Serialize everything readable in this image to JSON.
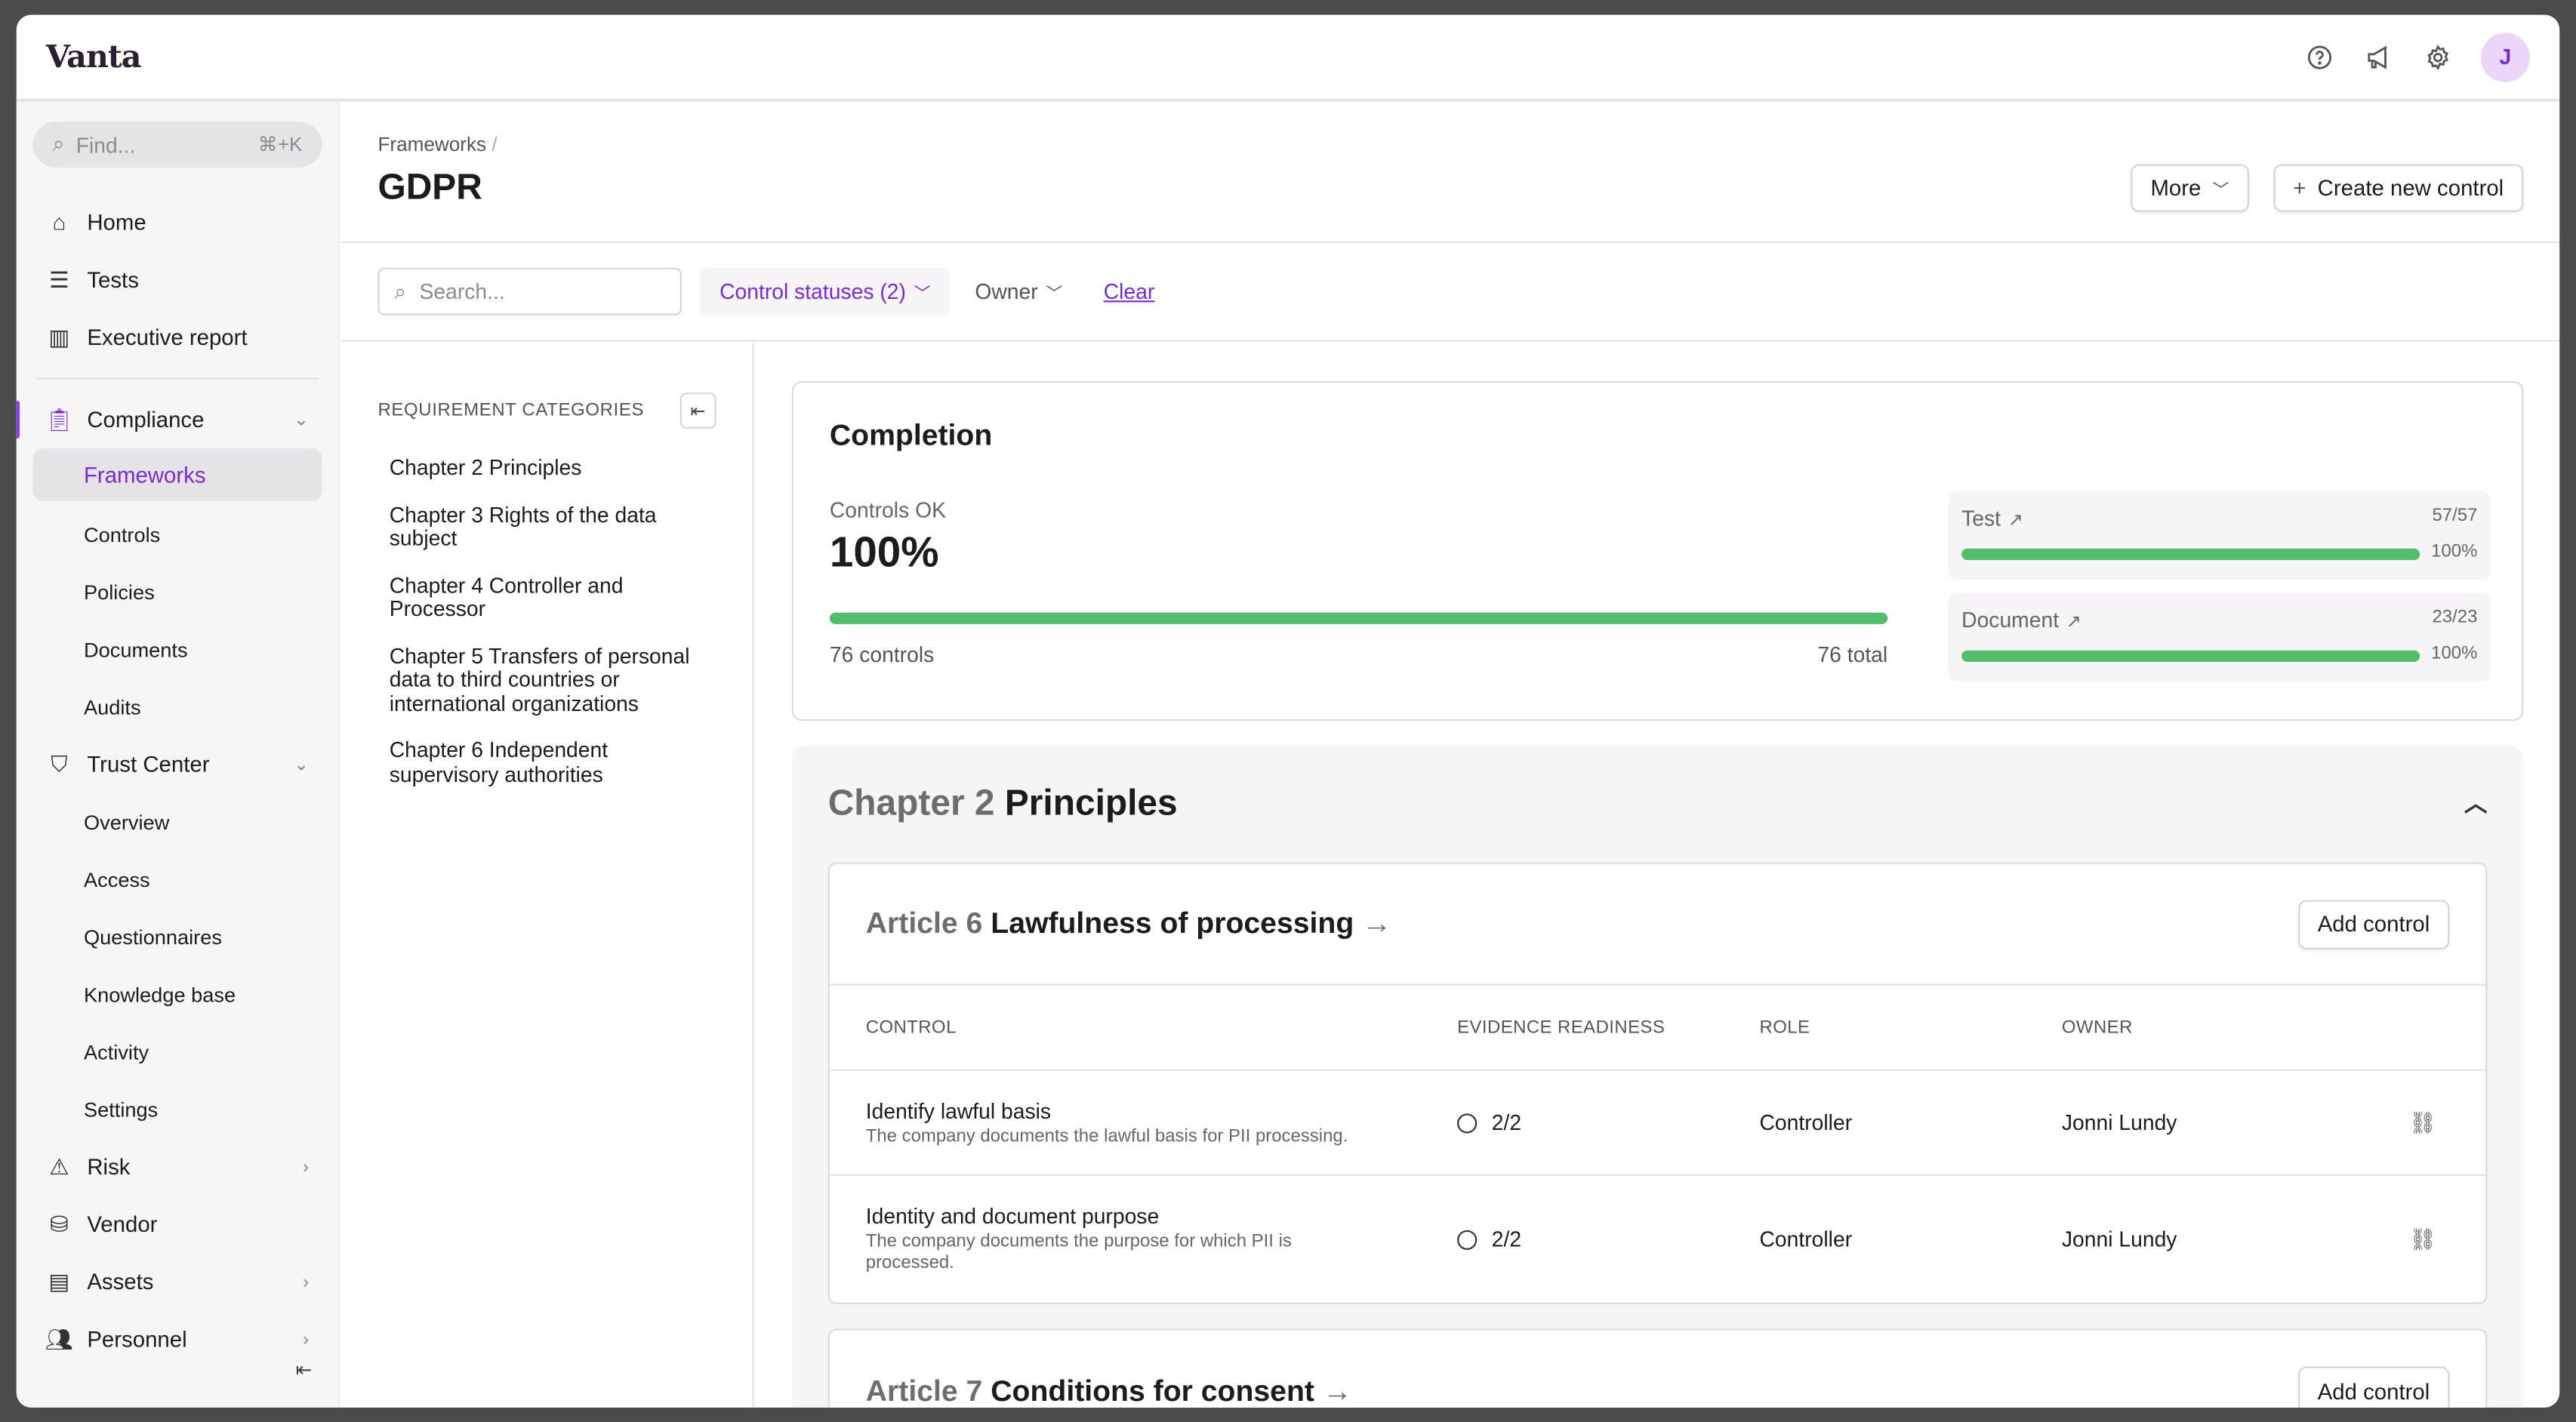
{
  "app": {
    "logo": "Vanta",
    "avatar_initial": "J"
  },
  "topbar": {
    "icons": [
      "help-circle-icon",
      "megaphone-icon",
      "gear-icon"
    ]
  },
  "sidebar": {
    "find_placeholder": "Find...",
    "find_shortcut": "⌘+K",
    "items": [
      {
        "label": "Home",
        "icon": "home-icon"
      },
      {
        "label": "Tests",
        "icon": "checklist-icon"
      },
      {
        "label": "Executive report",
        "icon": "chart-icon"
      },
      {
        "label": "Compliance",
        "icon": "clipboard-icon"
      },
      {
        "label": "Frameworks"
      },
      {
        "label": "Controls"
      },
      {
        "label": "Policies"
      },
      {
        "label": "Documents"
      },
      {
        "label": "Audits"
      },
      {
        "label": "Trust Center",
        "icon": "shield-icon"
      },
      {
        "label": "Overview"
      },
      {
        "label": "Access"
      },
      {
        "label": "Questionnaires"
      },
      {
        "label": "Knowledge base"
      },
      {
        "label": "Activity"
      },
      {
        "label": "Settings"
      },
      {
        "label": "Risk",
        "icon": "alert-icon"
      },
      {
        "label": "Vendor",
        "icon": "vendor-icon"
      },
      {
        "label": "Assets",
        "icon": "server-icon"
      },
      {
        "label": "Personnel",
        "icon": "people-icon"
      }
    ],
    "active": "Frameworks",
    "accent": "#7a2ad1"
  },
  "header": {
    "breadcrumb": "Frameworks",
    "breadcrumb_sep": "/",
    "title": "GDPR",
    "more_label": "More",
    "create_label": "Create new control"
  },
  "filters": {
    "search_placeholder": "Search...",
    "control_statuses": "Control statuses (2)",
    "owner": "Owner",
    "clear": "Clear"
  },
  "categories": {
    "heading": "REQUIREMENT CATEGORIES",
    "items": [
      "Chapter 2 Principles",
      "Chapter 3 Rights of the data subject",
      "Chapter 4 Controller and Processor",
      "Chapter 5 Transfers of personal data to third countries or international organizations",
      "Chapter 6 Independent supervisory authorities"
    ]
  },
  "completion": {
    "title": "Completion",
    "controls_ok_label": "Controls OK",
    "controls_ok_value": "100%",
    "progress": 1.0,
    "controls_count": "76 controls",
    "total": "76 total",
    "breakdown": [
      {
        "label": "Test",
        "count": "57/57",
        "percent": "100%",
        "progress": 1.0
      },
      {
        "label": "Document",
        "count": "23/23",
        "percent": "100%",
        "progress": 1.0
      }
    ],
    "bar_color": "#52bd6d"
  },
  "chapter": {
    "prefix": "Chapter 2",
    "name": "Principles",
    "articles": [
      {
        "prefix": "Article 6",
        "name": "Lawfulness of processing",
        "add_label": "Add control",
        "columns": [
          "CONTROL",
          "EVIDENCE READINESS",
          "ROLE",
          "OWNER"
        ],
        "rows": [
          {
            "name": "Identify lawful basis",
            "desc": "The company documents the lawful basis for PII processing.",
            "readiness": "2/2",
            "role": "Controller",
            "owner": "Jonni Lundy"
          },
          {
            "name": "Identity and document purpose",
            "desc": "The company documents the purpose for which PII is processed.",
            "readiness": "2/2",
            "role": "Controller",
            "owner": "Jonni Lundy"
          }
        ]
      },
      {
        "prefix": "Article 7",
        "name": "Conditions for consent",
        "add_label": "Add control"
      }
    ]
  }
}
